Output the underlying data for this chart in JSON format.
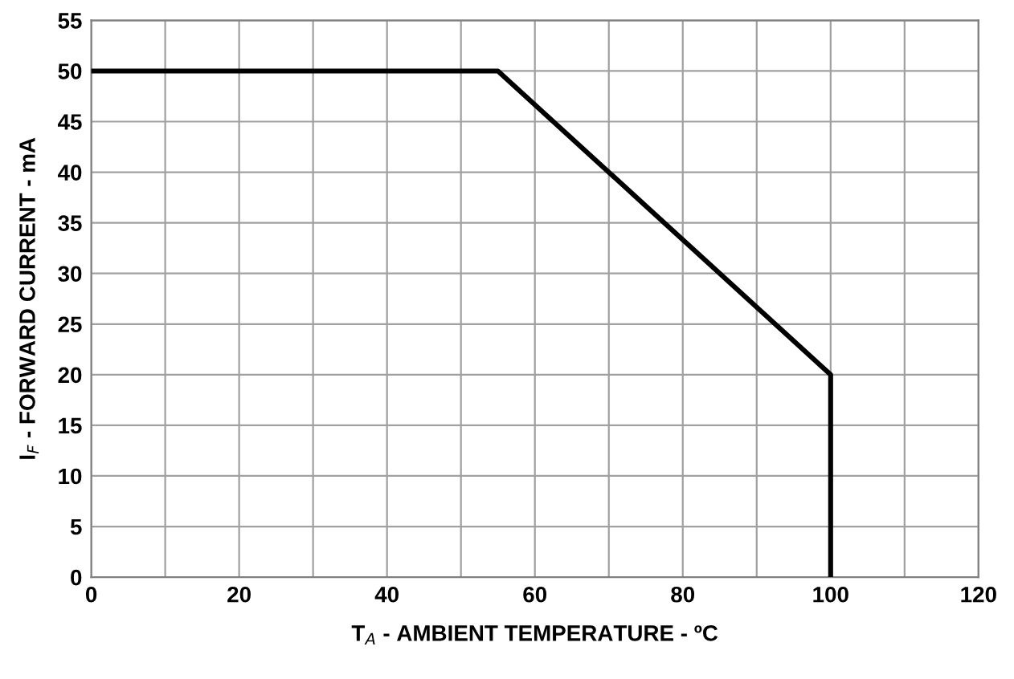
{
  "chart_data": {
    "type": "line",
    "xlabel": "T$_{A}$ - AMBIENT TEMPERATURE - ºC",
    "ylabel": "I$_{F}$ - FORWARD CURRENT - mA",
    "series": [
      {
        "x": [
          0,
          55,
          100,
          100
        ],
        "values": [
          50,
          50,
          20,
          0
        ],
        "color": "#000000"
      }
    ],
    "xlim": [
      0,
      120
    ],
    "xticks": [
      0,
      {
        "value": 10,
        "label": null
      },
      20,
      {
        "value": 30,
        "label": null
      },
      40,
      {
        "value": 50,
        "label": null
      },
      60,
      {
        "value": 70,
        "label": null
      },
      80,
      {
        "value": 90,
        "label": null
      },
      100,
      {
        "value": 110,
        "label": null
      },
      120
    ],
    "ylim": [
      0,
      55
    ],
    "yticks": [
      0,
      5,
      10,
      15,
      20,
      25,
      30,
      35,
      40,
      45,
      50,
      55
    ],
    "grid": true,
    "marker": "none",
    "line_style": "solid"
  }
}
